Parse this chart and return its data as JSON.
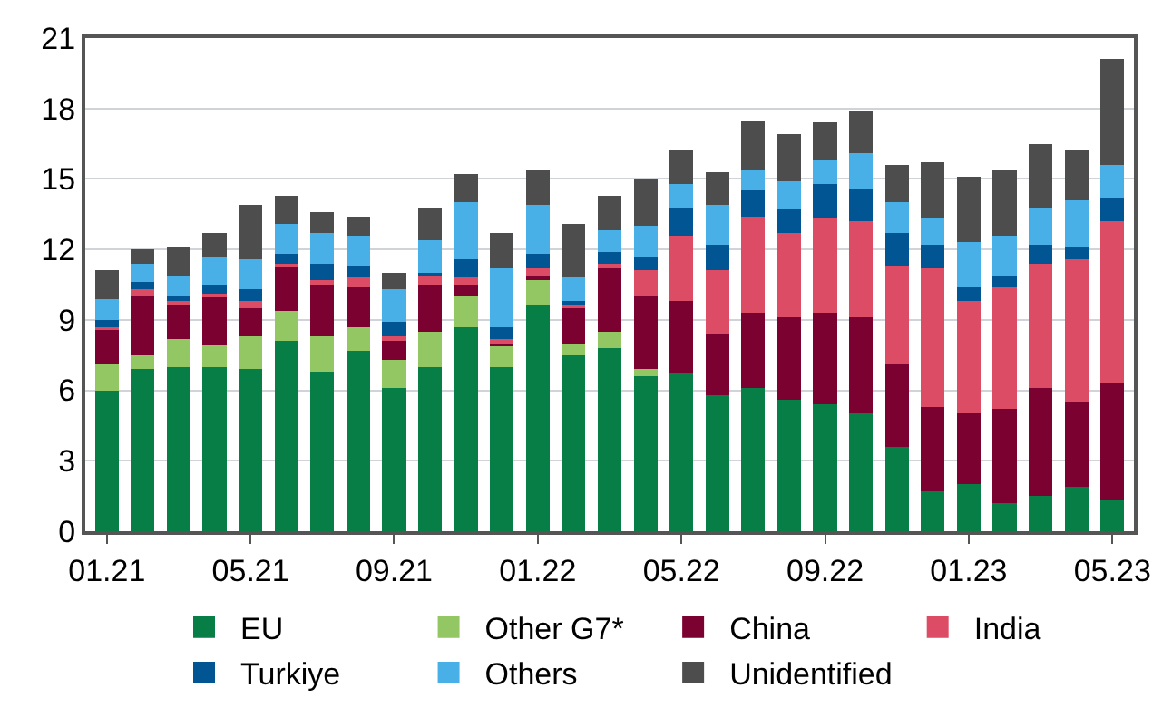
{
  "chart_data": {
    "type": "bar",
    "stacked": true,
    "categories": [
      "01.21",
      null,
      null,
      null,
      "05.21",
      null,
      null,
      null,
      "09.21",
      null,
      null,
      null,
      "01.22",
      null,
      null,
      null,
      "05.22",
      null,
      null,
      null,
      "09.22",
      null,
      null,
      null,
      "01.23",
      null,
      null,
      null,
      "05.23"
    ],
    "series": [
      {
        "name": "EU",
        "color": "#067e45",
        "values": [
          6.0,
          6.9,
          7.0,
          7.0,
          6.9,
          8.1,
          6.8,
          7.7,
          6.1,
          7.0,
          8.7,
          7.0,
          9.6,
          7.5,
          7.8,
          6.6,
          6.7,
          5.8,
          6.1,
          5.6,
          5.4,
          5.0,
          3.6,
          1.7,
          2.0,
          1.2,
          1.5,
          1.9,
          1.3
        ]
      },
      {
        "name": "Other G7*",
        "color": "#92c763",
        "values": [
          1.1,
          0.6,
          1.2,
          0.9,
          1.4,
          1.3,
          1.5,
          1.0,
          1.2,
          1.5,
          1.3,
          0.9,
          1.1,
          0.5,
          0.7,
          0.3,
          0,
          0,
          0,
          0,
          0,
          0,
          0,
          0,
          0,
          0,
          0,
          0,
          0
        ]
      },
      {
        "name": "China",
        "color": "#7b0230",
        "values": [
          1.5,
          2.5,
          1.5,
          2.1,
          1.2,
          1.9,
          2.2,
          1.7,
          0.8,
          2.0,
          0.5,
          0.1,
          0.2,
          1.5,
          2.7,
          3.1,
          3.1,
          2.6,
          3.2,
          3.5,
          3.9,
          4.1,
          3.5,
          3.6,
          3.0,
          4.0,
          4.6,
          3.6,
          5.0
        ]
      },
      {
        "name": "India",
        "color": "#dc4c65",
        "values": [
          0.1,
          0.3,
          0.1,
          0.1,
          0.3,
          0.1,
          0.2,
          0.4,
          0.2,
          0.4,
          0.3,
          0.2,
          0.3,
          0.1,
          0.2,
          1.1,
          2.8,
          2.7,
          4.1,
          3.6,
          4.0,
          4.1,
          4.2,
          5.9,
          4.8,
          5.2,
          5.3,
          6.1,
          6.9
        ]
      },
      {
        "name": "Turkiye",
        "color": "#005592",
        "values": [
          0.3,
          0.3,
          0.2,
          0.4,
          0.5,
          0.4,
          0.7,
          0.5,
          0.6,
          0.1,
          0.8,
          0.5,
          0.6,
          0.2,
          0.5,
          0.6,
          1.2,
          1.1,
          1.1,
          1.0,
          1.5,
          1.4,
          1.4,
          1.0,
          0.6,
          0.5,
          0.8,
          0.5,
          1.0
        ]
      },
      {
        "name": "Others",
        "color": "#48b0e6",
        "values": [
          0.9,
          0.8,
          0.9,
          1.2,
          1.3,
          1.3,
          1.3,
          1.3,
          1.4,
          1.4,
          2.4,
          2.5,
          2.1,
          1.0,
          0.9,
          1.3,
          1.0,
          1.7,
          0.9,
          1.2,
          1.0,
          1.5,
          1.3,
          1.1,
          1.9,
          1.7,
          1.6,
          2.0,
          1.4
        ]
      },
      {
        "name": "Unidentified",
        "color": "#4d4d4d",
        "values": [
          1.2,
          0.6,
          1.2,
          1.0,
          2.3,
          1.2,
          0.9,
          0.8,
          0.7,
          1.4,
          1.2,
          1.5,
          1.5,
          2.3,
          1.5,
          2.0,
          1.4,
          1.4,
          2.1,
          2.0,
          1.6,
          1.8,
          1.6,
          2.4,
          2.8,
          2.8,
          2.7,
          2.1,
          4.5
        ]
      }
    ],
    "ylim": [
      0,
      21
    ],
    "yticks": [
      0,
      3,
      6,
      9,
      12,
      15,
      18,
      21
    ],
    "grid": "y",
    "legend": "bottom"
  }
}
